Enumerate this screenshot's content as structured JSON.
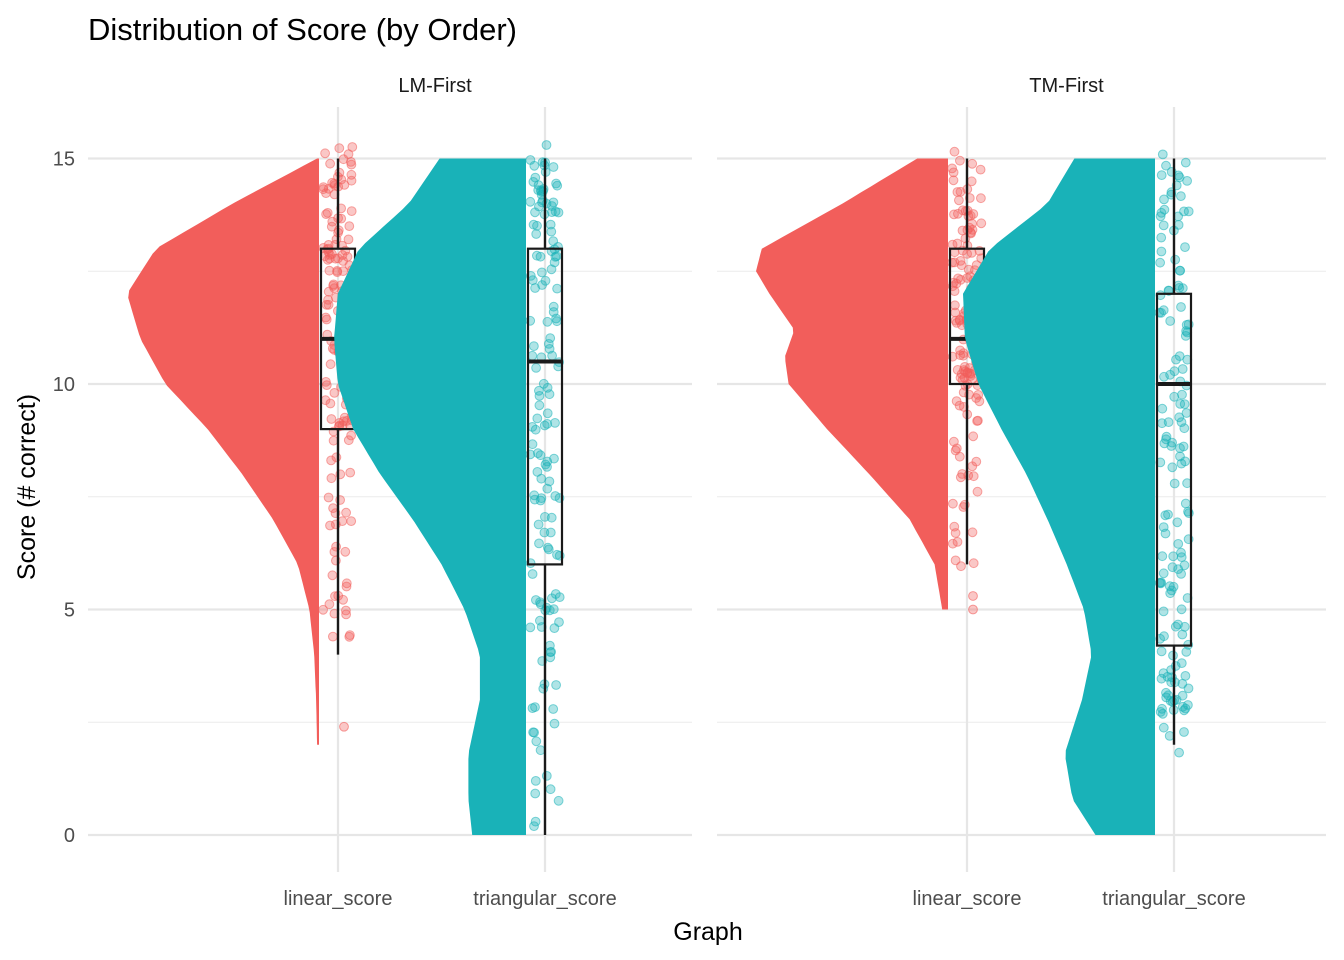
{
  "chart_data": {
    "type": "raincloud",
    "title": "Distribution of Score (by Order)",
    "xlabel": "Graph",
    "ylabel": "Score (# correct)",
    "ylim": [
      -0.6,
      16.1
    ],
    "y_ticks": [
      0,
      5,
      10,
      15
    ],
    "grid": true,
    "legend": "none",
    "categories": [
      "linear_score",
      "triangular_score"
    ],
    "colors": {
      "linear_score": "#F25E5B",
      "triangular_score": "#19B2B8"
    },
    "facets": [
      {
        "label": "LM-First",
        "groups": [
          {
            "category": "linear_score",
            "boxplot": {
              "whisker_low": 4,
              "q1": 9,
              "median": 11,
              "q3": 13,
              "whisker_high": 15
            },
            "outliers": [
              2.4
            ],
            "density_range": [
              2,
              15
            ],
            "density": [
              [
                2,
                0.01
              ],
              [
                3,
                0.015
              ],
              [
                4,
                0.025
              ],
              [
                5,
                0.05
              ],
              [
                6,
                0.11
              ],
              [
                7,
                0.24
              ],
              [
                8,
                0.4
              ],
              [
                9,
                0.58
              ],
              [
                10,
                0.8
              ],
              [
                11,
                0.93
              ],
              [
                12,
                1.0
              ],
              [
                13,
                0.85
              ],
              [
                14,
                0.45
              ],
              [
                15,
                0.01
              ]
            ]
          },
          {
            "category": "triangular_score",
            "boxplot": {
              "whisker_low": 0,
              "q1": 6,
              "median": 10.5,
              "q3": 13,
              "whisker_high": 15
            },
            "outliers": [],
            "density_range": [
              0,
              15
            ],
            "density": [
              [
                0,
                0.28
              ],
              [
                0.8,
                0.3
              ],
              [
                1.8,
                0.3
              ],
              [
                3,
                0.24
              ],
              [
                4,
                0.24
              ],
              [
                5,
                0.32
              ],
              [
                6,
                0.44
              ],
              [
                7,
                0.59
              ],
              [
                8,
                0.76
              ],
              [
                9,
                0.9
              ],
              [
                10,
                0.98
              ],
              [
                11,
                1.0
              ],
              [
                12,
                0.98
              ],
              [
                13,
                0.87
              ],
              [
                14,
                0.61
              ],
              [
                15,
                0.45
              ]
            ]
          }
        ]
      },
      {
        "label": "TM-First",
        "groups": [
          {
            "category": "linear_score",
            "boxplot": {
              "whisker_low": 6,
              "q1": 10,
              "median": 11,
              "q3": 13,
              "whisker_high": 15
            },
            "outliers": [
              5.3,
              5.0
            ],
            "density_range": [
              5,
              15
            ],
            "density": [
              [
                5,
                0.03
              ],
              [
                6,
                0.07
              ],
              [
                7,
                0.2
              ],
              [
                8,
                0.41
              ],
              [
                9,
                0.63
              ],
              [
                10,
                0.83
              ],
              [
                10.6,
                0.85
              ],
              [
                11.2,
                0.8
              ],
              [
                12,
                0.93
              ],
              [
                12.5,
                1.0
              ],
              [
                13,
                0.97
              ],
              [
                14,
                0.55
              ],
              [
                15,
                0.16
              ]
            ]
          },
          {
            "category": "triangular_score",
            "boxplot": {
              "whisker_low": 2,
              "q1": 4.2,
              "median": 10,
              "q3": 12,
              "whisker_high": 15
            },
            "outliers": [],
            "density_range": [
              0,
              15
            ],
            "density": [
              [
                0,
                0.31
              ],
              [
                0.8,
                0.43
              ],
              [
                1.8,
                0.47
              ],
              [
                3,
                0.38
              ],
              [
                4,
                0.33
              ],
              [
                5,
                0.37
              ],
              [
                6,
                0.46
              ],
              [
                7,
                0.56
              ],
              [
                8,
                0.67
              ],
              [
                9,
                0.8
              ],
              [
                10,
                0.92
              ],
              [
                11,
                0.99
              ],
              [
                12,
                1.0
              ],
              [
                13,
                0.86
              ],
              [
                14,
                0.56
              ],
              [
                15,
                0.42
              ]
            ]
          }
        ]
      }
    ]
  }
}
